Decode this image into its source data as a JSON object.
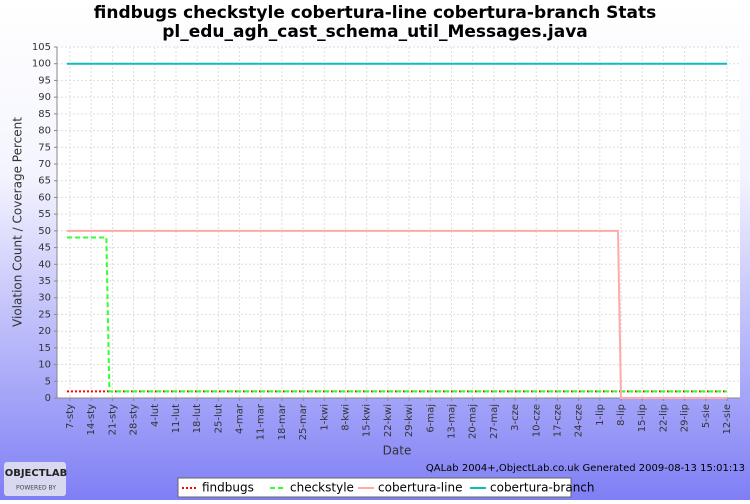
{
  "chart_data": {
    "type": "line",
    "title": "findbugs checkstyle cobertura-line cobertura-branch  Stats",
    "subtitle": "pl_edu_agh_cast_schema_util_Messages.java",
    "x_label": "Date",
    "y_label": "Violation Count / Coverage Percent",
    "footer": "QALab 2004+,ObjectLab.co.uk Generated 2009-08-13 15:01:13",
    "logo": "OBJECTLAB",
    "logo_sub": "POWERED BY",
    "x": [
      -1,
      12,
      13,
      181,
      182,
      217
    ],
    "xlim": [
      -4.3,
      221.3
    ],
    "xticks": [
      {
        "value": 0,
        "label": "7-sty"
      },
      {
        "value": 7,
        "label": "14-sty"
      },
      {
        "value": 14,
        "label": "21-sty"
      },
      {
        "value": 21,
        "label": "28-sty"
      },
      {
        "value": 28,
        "label": "4-lut"
      },
      {
        "value": 35,
        "label": "11-lut"
      },
      {
        "value": 42,
        "label": "18-lut"
      },
      {
        "value": 49,
        "label": "25-lut"
      },
      {
        "value": 56,
        "label": "4-mar"
      },
      {
        "value": 63,
        "label": "11-mar"
      },
      {
        "value": 70,
        "label": "18-mar"
      },
      {
        "value": 77,
        "label": "25-mar"
      },
      {
        "value": 84,
        "label": "1-kwi"
      },
      {
        "value": 91,
        "label": "8-kwi"
      },
      {
        "value": 98,
        "label": "15-kwi"
      },
      {
        "value": 105,
        "label": "22-kwi"
      },
      {
        "value": 112,
        "label": "29-kwi"
      },
      {
        "value": 119,
        "label": "6-maj"
      },
      {
        "value": 126,
        "label": "13-maj"
      },
      {
        "value": 133,
        "label": "20-maj"
      },
      {
        "value": 140,
        "label": "27-maj"
      },
      {
        "value": 147,
        "label": "3-cze"
      },
      {
        "value": 154,
        "label": "10-cze"
      },
      {
        "value": 161,
        "label": "17-cze"
      },
      {
        "value": 168,
        "label": "24-cze"
      },
      {
        "value": 175,
        "label": "1-lip"
      },
      {
        "value": 182,
        "label": "8-lip"
      },
      {
        "value": 189,
        "label": "15-lip"
      },
      {
        "value": 196,
        "label": "22-lip"
      },
      {
        "value": 203,
        "label": "29-lip"
      },
      {
        "value": 210,
        "label": "5-sie"
      },
      {
        "value": 217,
        "label": "12-sie"
      }
    ],
    "ylim": [
      0,
      105
    ],
    "yticks": [
      0,
      5,
      10,
      15,
      20,
      25,
      30,
      35,
      40,
      45,
      50,
      55,
      60,
      65,
      70,
      75,
      80,
      85,
      90,
      95,
      100,
      105
    ],
    "grid": true,
    "series": [
      {
        "name": "findbugs",
        "color": "#ff0000",
        "dash": "2,2",
        "values": [
          2,
          2,
          2,
          2,
          2,
          2
        ]
      },
      {
        "name": "checkstyle",
        "color": "#33ff33",
        "dash": "5,3",
        "values": [
          48,
          48,
          2,
          2,
          2,
          2
        ]
      },
      {
        "name": "cobertura-line",
        "color": "#ffaaaa",
        "dash": "",
        "values": [
          50,
          50,
          50,
          50,
          0,
          0
        ]
      },
      {
        "name": "cobertura-branch",
        "color": "#11bbbb",
        "dash": "",
        "values": [
          100,
          100,
          100,
          100,
          100,
          100
        ]
      }
    ]
  }
}
